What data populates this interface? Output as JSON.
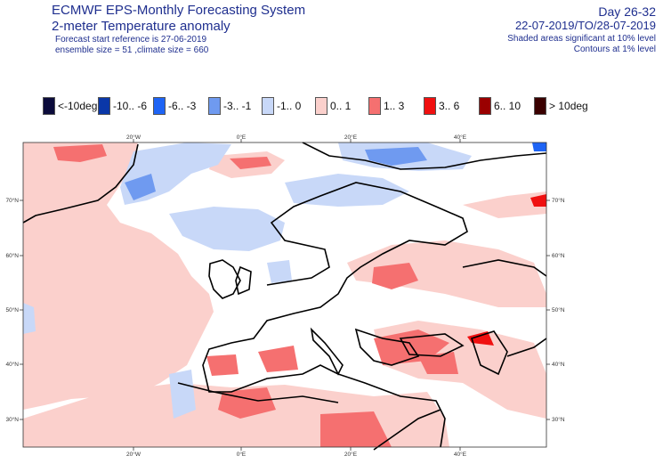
{
  "header": {
    "title_line1": "ECMWF EPS-Monthly Forecasting System",
    "title_line2": "2-meter Temperature anomaly",
    "meta_line1": "Forecast start reference is 27-06-2019",
    "meta_line2": "ensemble size = 51  ,climate size = 660",
    "day_range": "Day 26-32",
    "date_range": "22-07-2019/TO/28-07-2019",
    "significance_note": "Shaded areas significant at 10% level",
    "contour_note": "Contours at 1% level"
  },
  "legend": [
    {
      "label": "<-10deg",
      "color": "#0b0b3b"
    },
    {
      "label": "-10.. -6",
      "color": "#0a37a8"
    },
    {
      "label": "-6.. -3",
      "color": "#1e64f5"
    },
    {
      "label": "-3.. -1",
      "color": "#6f9af0"
    },
    {
      "label": "-1.. 0",
      "color": "#c8d8f8"
    },
    {
      "label": "0.. 1",
      "color": "#fbd0cc"
    },
    {
      "label": "1.. 3",
      "color": "#f57070"
    },
    {
      "label": "3.. 6",
      "color": "#f01010"
    },
    {
      "label": "6.. 10",
      "color": "#9a0000"
    },
    {
      "label": "> 10deg",
      "color": "#3a0000"
    }
  ],
  "map": {
    "lon_labels": [
      "20°W",
      "0°E",
      "20°E",
      "40°E"
    ],
    "lat_labels": [
      "70°N",
      "60°N",
      "50°N",
      "40°N",
      "30°N"
    ]
  }
}
